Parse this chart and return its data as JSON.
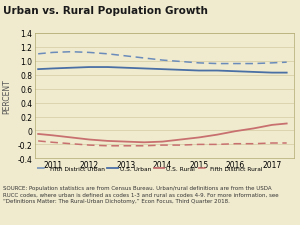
{
  "title": "Urban vs. Rural Population Growth",
  "ylabel": "PERCENT",
  "ylim": [
    -0.4,
    1.4
  ],
  "yticks": [
    -0.4,
    -0.2,
    0.0,
    0.2,
    0.4,
    0.6,
    0.8,
    1.0,
    1.2,
    1.4
  ],
  "years": [
    2010.6,
    2011.0,
    2011.5,
    2012.0,
    2012.5,
    2013.0,
    2013.5,
    2014.0,
    2014.5,
    2015.0,
    2015.5,
    2016.0,
    2016.5,
    2017.0,
    2017.4
  ],
  "fifth_district_urban": [
    1.1,
    1.12,
    1.13,
    1.12,
    1.1,
    1.07,
    1.04,
    1.01,
    0.99,
    0.97,
    0.96,
    0.96,
    0.96,
    0.97,
    0.98
  ],
  "us_urban": [
    0.88,
    0.89,
    0.9,
    0.91,
    0.91,
    0.9,
    0.89,
    0.88,
    0.87,
    0.86,
    0.86,
    0.85,
    0.84,
    0.83,
    0.83
  ],
  "us_rural": [
    -0.05,
    -0.07,
    -0.1,
    -0.13,
    -0.15,
    -0.16,
    -0.17,
    -0.16,
    -0.13,
    -0.1,
    -0.06,
    -0.01,
    0.03,
    0.08,
    0.1
  ],
  "fifth_district_rural": [
    -0.15,
    -0.17,
    -0.19,
    -0.21,
    -0.22,
    -0.22,
    -0.22,
    -0.21,
    -0.21,
    -0.2,
    -0.2,
    -0.19,
    -0.19,
    -0.18,
    -0.18
  ],
  "xticks": [
    2011,
    2012,
    2013,
    2014,
    2015,
    2016,
    2017
  ],
  "xlim": [
    2010.5,
    2017.6
  ],
  "color_fifth_urban": "#6b8cba",
  "color_us_urban": "#4a6fa5",
  "color_us_rural": "#c87070",
  "color_fifth_rural": "#c87070",
  "bg_color": "#f0ebcf",
  "plot_bg": "#f0ebcf",
  "grid_color": "#d8d0a8",
  "border_color": "#b0a870",
  "source_text": "SOURCE: Population statistics are from Census Bureau. Urban/rural definitions are from the USDA\nRUCC codes, where urban is defined as codes 1-3 and rural as codes 4-9. For more information, see\n“Definitions Matter: The Rural-Urban Dichotomy,” Econ Focus, Third Quarter 2018.",
  "legend_labels": [
    "Fifth District Urban",
    "U.S. Urban",
    "U.S. Rural",
    "Fifth District Rural"
  ]
}
